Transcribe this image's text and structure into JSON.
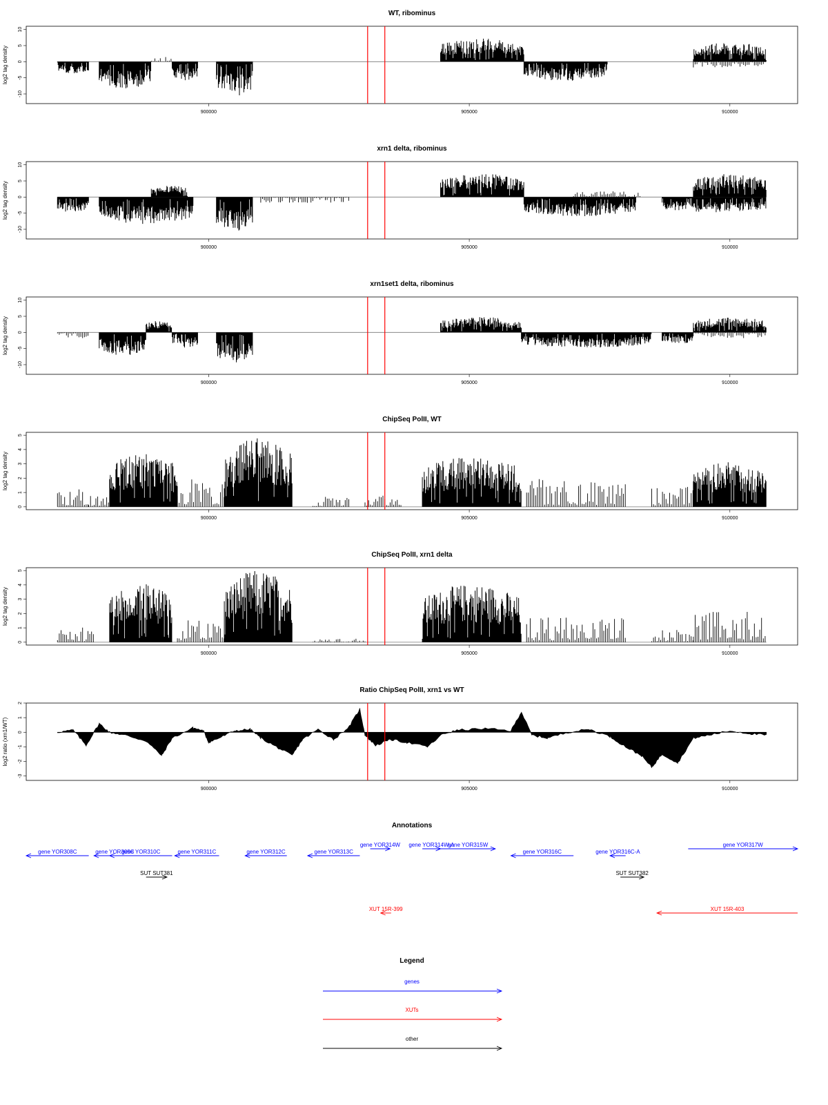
{
  "colors": {
    "gene": "#0000ff",
    "xut": "#ff0000",
    "other": "#000000",
    "marker": "#ff0000",
    "bar": "#000000"
  },
  "chart_data": [
    {
      "type": "bar",
      "title": "WT, ribominus",
      "ylabel": "log2 tag density",
      "xlim": [
        896500,
        911300
      ],
      "ylim": [
        -13,
        11
      ],
      "yticks": [
        "-10",
        "-5",
        "0",
        "5",
        "10"
      ],
      "ytick_values": [
        -10,
        -5,
        0,
        5,
        10
      ],
      "xticks": [
        "900000",
        "905000",
        "910000"
      ],
      "xtick_values": [
        900000,
        905000,
        910000
      ],
      "red_lines": [
        903050,
        903380
      ],
      "segments": [
        {
          "x": [
            897100,
            897700
          ],
          "v": -3,
          "type": "neg"
        },
        {
          "x": [
            897900,
            898900
          ],
          "v": -7,
          "type": "neg"
        },
        {
          "x": [
            898900,
            899300
          ],
          "v": 2,
          "type": "pos"
        },
        {
          "x": [
            899300,
            899800
          ],
          "v": -5,
          "type": "neg"
        },
        {
          "x": [
            900150,
            900850
          ],
          "v": -9,
          "type": "neg"
        },
        {
          "x": [
            904450,
            906050
          ],
          "v": 6,
          "type": "pos"
        },
        {
          "x": [
            906050,
            907650
          ],
          "v": -5,
          "type": "neg"
        },
        {
          "x": [
            909300,
            910700
          ],
          "v": 5,
          "type": "pos"
        },
        {
          "x": [
            909300,
            910700
          ],
          "v": -2,
          "type": "neg"
        }
      ]
    },
    {
      "type": "bar",
      "title": "xrn1 delta, ribominus",
      "ylabel": "log2 tag density",
      "xlim": [
        896500,
        911300
      ],
      "ylim": [
        -13,
        11
      ],
      "yticks": [
        "-10",
        "-5",
        "0",
        "5",
        "10"
      ],
      "ytick_values": [
        -10,
        -5,
        0,
        5,
        10
      ],
      "xticks": [
        "900000",
        "905000",
        "910000"
      ],
      "xtick_values": [
        900000,
        905000,
        910000
      ],
      "red_lines": [
        903050,
        903380
      ],
      "segments": [
        {
          "x": [
            897100,
            897700
          ],
          "v": -4,
          "type": "neg"
        },
        {
          "x": [
            897900,
            899700
          ],
          "v": -7,
          "type": "neg"
        },
        {
          "x": [
            898900,
            899600
          ],
          "v": 3,
          "type": "pos"
        },
        {
          "x": [
            900150,
            900850
          ],
          "v": -9,
          "type": "neg"
        },
        {
          "x": [
            901000,
            902700
          ],
          "v": -2,
          "type": "neg"
        },
        {
          "x": [
            904450,
            906050
          ],
          "v": 6,
          "type": "pos"
        },
        {
          "x": [
            906050,
            908200
          ],
          "v": -5,
          "type": "neg"
        },
        {
          "x": [
            907000,
            908300
          ],
          "v": 2,
          "type": "pos"
        },
        {
          "x": [
            908700,
            910700
          ],
          "v": -4,
          "type": "neg"
        },
        {
          "x": [
            909300,
            910700
          ],
          "v": 6,
          "type": "pos"
        }
      ]
    },
    {
      "type": "bar",
      "title": "xrn1set1 delta, ribominus",
      "ylabel": "log2 tag density",
      "xlim": [
        896500,
        911300
      ],
      "ylim": [
        -13,
        11
      ],
      "yticks": [
        "-10",
        "-5",
        "0",
        "5",
        "10"
      ],
      "ytick_values": [
        -10,
        -5,
        0,
        5,
        10
      ],
      "xticks": [
        "900000",
        "905000",
        "910000"
      ],
      "xtick_values": [
        900000,
        905000,
        910000
      ],
      "red_lines": [
        903050,
        903380
      ],
      "segments": [
        {
          "x": [
            897100,
            897700
          ],
          "v": -2,
          "type": "neg"
        },
        {
          "x": [
            897900,
            898800
          ],
          "v": -6,
          "type": "neg"
        },
        {
          "x": [
            898800,
            899300
          ],
          "v": 3,
          "type": "pos"
        },
        {
          "x": [
            899300,
            899800
          ],
          "v": -4,
          "type": "neg"
        },
        {
          "x": [
            900150,
            900850
          ],
          "v": -8,
          "type": "neg"
        },
        {
          "x": [
            904450,
            906000
          ],
          "v": 4,
          "type": "pos"
        },
        {
          "x": [
            906000,
            908500
          ],
          "v": -4,
          "type": "neg"
        },
        {
          "x": [
            908700,
            909300
          ],
          "v": -3,
          "type": "neg"
        },
        {
          "x": [
            909300,
            910700
          ],
          "v": 4,
          "type": "pos"
        },
        {
          "x": [
            909300,
            910700
          ],
          "v": -2,
          "type": "neg"
        }
      ]
    },
    {
      "type": "bar",
      "title": "ChipSeq PolII, WT",
      "ylabel": "log2 tag density",
      "xlim": [
        896500,
        911300
      ],
      "ylim": [
        -0.2,
        5.2
      ],
      "yticks": [
        "0",
        "1",
        "2",
        "3",
        "4",
        "5"
      ],
      "ytick_values": [
        0,
        1,
        2,
        3,
        4,
        5
      ],
      "xticks": [
        "900000",
        "905000",
        "910000"
      ],
      "xtick_values": [
        900000,
        905000,
        910000
      ],
      "red_lines": [
        903050,
        903380
      ],
      "segments": [
        {
          "x": [
            897100,
            897700
          ],
          "v": 1.4,
          "type": "pos"
        },
        {
          "x": [
            897700,
            898100
          ],
          "v": 1.0,
          "type": "pos"
        },
        {
          "x": [
            898100,
            899400
          ],
          "v": 3.2,
          "type": "pos"
        },
        {
          "x": [
            899400,
            900300
          ],
          "v": 2.2,
          "type": "pos"
        },
        {
          "x": [
            900300,
            901600
          ],
          "v": 4.0,
          "type": "pos"
        },
        {
          "x": [
            902000,
            902700
          ],
          "v": 0.8,
          "type": "pos"
        },
        {
          "x": [
            903000,
            903700
          ],
          "v": 0.9,
          "type": "pos"
        },
        {
          "x": [
            904100,
            906000
          ],
          "v": 3.0,
          "type": "pos"
        },
        {
          "x": [
            906100,
            908000
          ],
          "v": 2.2,
          "type": "pos"
        },
        {
          "x": [
            908500,
            909300
          ],
          "v": 1.6,
          "type": "pos"
        },
        {
          "x": [
            909300,
            910700
          ],
          "v": 2.6,
          "type": "pos"
        }
      ]
    },
    {
      "type": "bar",
      "title": "ChipSeq PolII, xrn1 delta",
      "ylabel": "log2 tag density",
      "xlim": [
        896500,
        911300
      ],
      "ylim": [
        -0.2,
        5.2
      ],
      "yticks": [
        "0",
        "1",
        "2",
        "3",
        "4",
        "5"
      ],
      "ytick_values": [
        0,
        1,
        2,
        3,
        4,
        5
      ],
      "xticks": [
        "900000",
        "905000",
        "910000"
      ],
      "xtick_values": [
        900000,
        905000,
        910000
      ],
      "red_lines": [
        903050,
        903380
      ],
      "segments": [
        {
          "x": [
            897100,
            897800
          ],
          "v": 1.2,
          "type": "pos"
        },
        {
          "x": [
            898100,
            899300
          ],
          "v": 3.4,
          "type": "pos"
        },
        {
          "x": [
            899400,
            900300
          ],
          "v": 2.0,
          "type": "pos"
        },
        {
          "x": [
            900300,
            901600
          ],
          "v": 4.2,
          "type": "pos"
        },
        {
          "x": [
            902000,
            903000
          ],
          "v": 0.3,
          "type": "pos"
        },
        {
          "x": [
            904100,
            906000
          ],
          "v": 3.4,
          "type": "pos"
        },
        {
          "x": [
            906100,
            908000
          ],
          "v": 2.0,
          "type": "pos"
        },
        {
          "x": [
            908500,
            909300
          ],
          "v": 1.0,
          "type": "pos"
        },
        {
          "x": [
            909300,
            910700
          ],
          "v": 2.4,
          "type": "pos"
        }
      ]
    },
    {
      "type": "area",
      "title": "Ratio ChipSeq PolII, xrn1 vs WT",
      "ylabel": "log2 ratio (xrn1/WT)",
      "xlim": [
        896500,
        911300
      ],
      "ylim": [
        -3.3,
        2.0
      ],
      "yticks": [
        "-3",
        "-2",
        "-1",
        "0",
        "1",
        "2"
      ],
      "ytick_values": [
        -3,
        -2,
        -1,
        0,
        1,
        2
      ],
      "xticks": [
        "900000",
        "905000",
        "910000"
      ],
      "xtick_values": [
        900000,
        905000,
        910000
      ],
      "red_lines": [
        903050,
        903380
      ],
      "curve": [
        [
          897100,
          0.0
        ],
        [
          897400,
          0.15
        ],
        [
          897650,
          -0.9
        ],
        [
          897900,
          0.6
        ],
        [
          898100,
          0.0
        ],
        [
          898400,
          -0.2
        ],
        [
          898800,
          -0.6
        ],
        [
          899100,
          -1.6
        ],
        [
          899300,
          -0.4
        ],
        [
          899700,
          0.3
        ],
        [
          899900,
          0.1
        ],
        [
          900000,
          -0.7
        ],
        [
          900200,
          -0.4
        ],
        [
          900500,
          0.1
        ],
        [
          900800,
          0.2
        ],
        [
          901000,
          -0.4
        ],
        [
          901300,
          -1.0
        ],
        [
          901600,
          -1.6
        ],
        [
          901800,
          -0.5
        ],
        [
          902100,
          0.2
        ],
        [
          902400,
          -0.5
        ],
        [
          902700,
          0.4
        ],
        [
          902900,
          1.6
        ],
        [
          903000,
          -0.2
        ],
        [
          903200,
          -0.9
        ],
        [
          903500,
          -0.5
        ],
        [
          903800,
          -0.7
        ],
        [
          904200,
          -1.0
        ],
        [
          904500,
          -0.1
        ],
        [
          904800,
          0.15
        ],
        [
          905300,
          0.25
        ],
        [
          905800,
          0.1
        ],
        [
          906000,
          1.4
        ],
        [
          906200,
          -0.2
        ],
        [
          906500,
          -0.4
        ],
        [
          906900,
          0.0
        ],
        [
          907300,
          0.2
        ],
        [
          907700,
          -0.3
        ],
        [
          908000,
          -1.0
        ],
        [
          908300,
          -1.6
        ],
        [
          908500,
          -2.4
        ],
        [
          908700,
          -1.5
        ],
        [
          909000,
          -2.1
        ],
        [
          909300,
          -0.4
        ],
        [
          909600,
          -0.2
        ],
        [
          910000,
          0.1
        ],
        [
          910400,
          -0.1
        ],
        [
          910700,
          -0.2
        ]
      ]
    }
  ],
  "annotations": {
    "title": "Annotations",
    "items": [
      {
        "label": "gene YOR308C",
        "type": "gene",
        "x": [
          896500,
          897700
        ],
        "dir": "left",
        "row": 0
      },
      {
        "label": "gene YOR309C",
        "type": "gene",
        "x": [
          897800,
          898600
        ],
        "dir": "left",
        "row": 0
      },
      {
        "label": "gene YOR310C",
        "type": "gene",
        "x": [
          898100,
          899300
        ],
        "dir": "left",
        "row": 0
      },
      {
        "label": "gene YOR311C",
        "type": "gene",
        "x": [
          899350,
          900200
        ],
        "dir": "left",
        "row": 0
      },
      {
        "label": "gene YOR312C",
        "type": "gene",
        "x": [
          900700,
          901500
        ],
        "dir": "left",
        "row": 0
      },
      {
        "label": "gene YOR313C",
        "type": "gene",
        "x": [
          901900,
          902900
        ],
        "dir": "left",
        "row": 0
      },
      {
        "label": "gene YOR314W",
        "type": "gene",
        "x": [
          903100,
          903480
        ],
        "dir": "right",
        "row": 1
      },
      {
        "label": "gene YOR314W-A",
        "type": "gene",
        "x": [
          904100,
          904450
        ],
        "dir": "right",
        "row": 1
      },
      {
        "label": "gene YOR315W",
        "type": "gene",
        "x": [
          904450,
          905500
        ],
        "dir": "right",
        "row": 1
      },
      {
        "label": "gene YOR316C",
        "type": "gene",
        "x": [
          905800,
          907000
        ],
        "dir": "left",
        "row": 0
      },
      {
        "label": "gene YOR316C-A",
        "type": "gene",
        "x": [
          907700,
          908000
        ],
        "dir": "left",
        "row": 0
      },
      {
        "label": "gene YOR317W",
        "type": "gene",
        "x": [
          909200,
          911300
        ],
        "dir": "right",
        "row": 1
      },
      {
        "label": "SUT SUT381",
        "type": "other",
        "x": [
          898800,
          899200
        ],
        "dir": "right",
        "row": 2
      },
      {
        "label": "SUT SUT382",
        "type": "other",
        "x": [
          907900,
          908350
        ],
        "dir": "right",
        "row": 2
      },
      {
        "label": "XUT 15R-399",
        "type": "xut",
        "x": [
          903300,
          903500
        ],
        "dir": "left",
        "row": 3
      },
      {
        "label": "XUT 15R-403",
        "type": "xut",
        "x": [
          908600,
          911300
        ],
        "dir": "left",
        "row": 3
      }
    ]
  },
  "legend": {
    "title": "Legend",
    "items": [
      {
        "label": "genes",
        "type": "gene"
      },
      {
        "label": "XUTs",
        "type": "xut"
      },
      {
        "label": "other",
        "type": "other"
      }
    ]
  }
}
